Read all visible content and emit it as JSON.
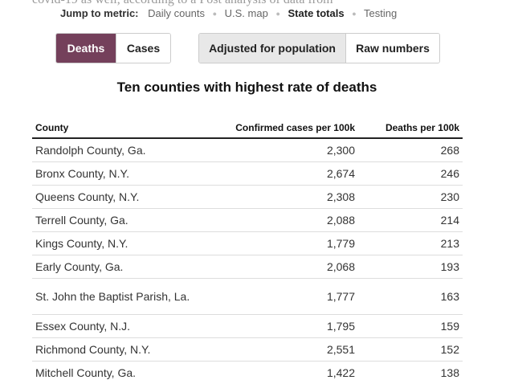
{
  "jump": {
    "label": "Jump to metric:",
    "links": [
      {
        "label": "Daily counts",
        "active": false
      },
      {
        "label": "U.S. map",
        "active": false
      },
      {
        "label": "State totals",
        "active": true
      },
      {
        "label": "Testing",
        "active": false
      }
    ]
  },
  "cut_text": "covid-19 as well, according to a Post analysis of data from",
  "toggles": {
    "metric": {
      "deaths": "Deaths",
      "cases": "Cases",
      "selected": "Deaths"
    },
    "scale": {
      "adjusted": "Adjusted for population",
      "raw": "Raw numbers",
      "selected": "Adjusted for population"
    }
  },
  "colors": {
    "accent": "#74405b",
    "selected_grey": "#e8e8e8"
  },
  "table": {
    "title": "Ten counties with highest rate of deaths",
    "headers": {
      "county": "County",
      "cases": "Confirmed cases per 100k",
      "deaths": "Deaths per 100k"
    },
    "rows": [
      {
        "county": "Randolph County, Ga.",
        "cases": "2,300",
        "deaths": "268"
      },
      {
        "county": "Bronx County, N.Y.",
        "cases": "2,674",
        "deaths": "246"
      },
      {
        "county": "Queens County, N.Y.",
        "cases": "2,308",
        "deaths": "230"
      },
      {
        "county": "Terrell County, Ga.",
        "cases": "2,088",
        "deaths": "214"
      },
      {
        "county": "Kings County, N.Y.",
        "cases": "1,779",
        "deaths": "213"
      },
      {
        "county": "Early County, Ga.",
        "cases": "2,068",
        "deaths": "193"
      },
      {
        "county": "St. John the Baptist Parish, La.",
        "cases": "1,777",
        "deaths": "163"
      },
      {
        "county": "Essex County, N.J.",
        "cases": "1,795",
        "deaths": "159"
      },
      {
        "county": "Richmond County, N.Y.",
        "cases": "2,551",
        "deaths": "152"
      },
      {
        "county": "Mitchell County, Ga.",
        "cases": "1,422",
        "deaths": "138"
      }
    ]
  }
}
